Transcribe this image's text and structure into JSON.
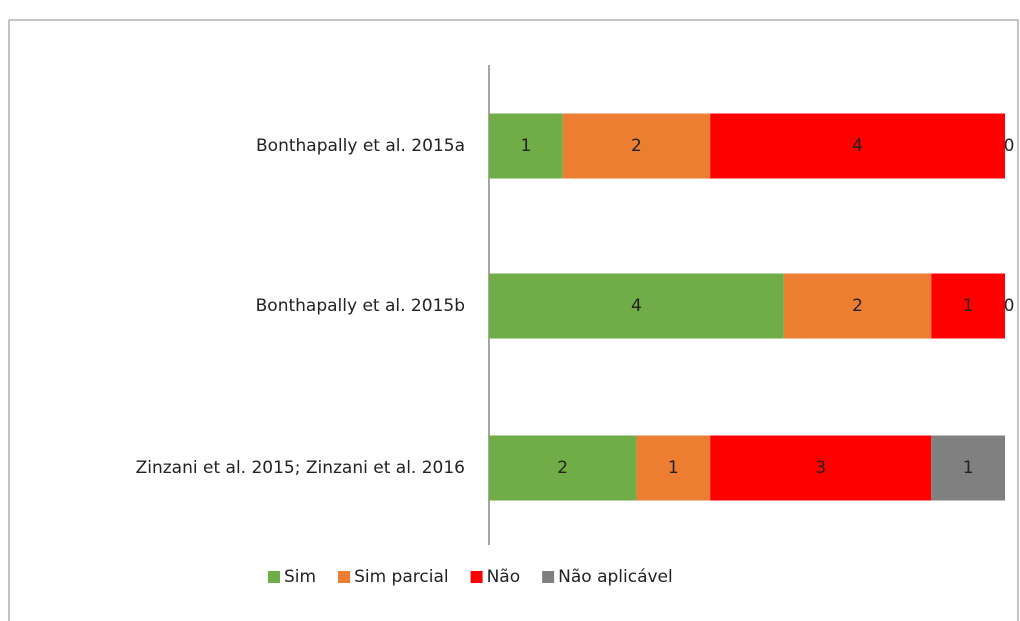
{
  "chart_data": {
    "type": "stacked-barh",
    "categories": [
      "Bonthapally et al. 2015a",
      "Bonthapally et al. 2015b",
      "Zinzani et al. 2015; Zinzani et al. 2016"
    ],
    "series": [
      {
        "name": "Sim",
        "color": "#70ad47",
        "values": [
          1,
          4,
          2
        ]
      },
      {
        "name": "Sim parcial",
        "color": "#ed7d31",
        "values": [
          2,
          2,
          1
        ]
      },
      {
        "name": "Não",
        "color": "#ff0000",
        "values": [
          4,
          1,
          3
        ]
      },
      {
        "name": "Não aplicável",
        "color": "#808080",
        "values": [
          0,
          0,
          1
        ]
      }
    ],
    "legend": "bottom"
  }
}
